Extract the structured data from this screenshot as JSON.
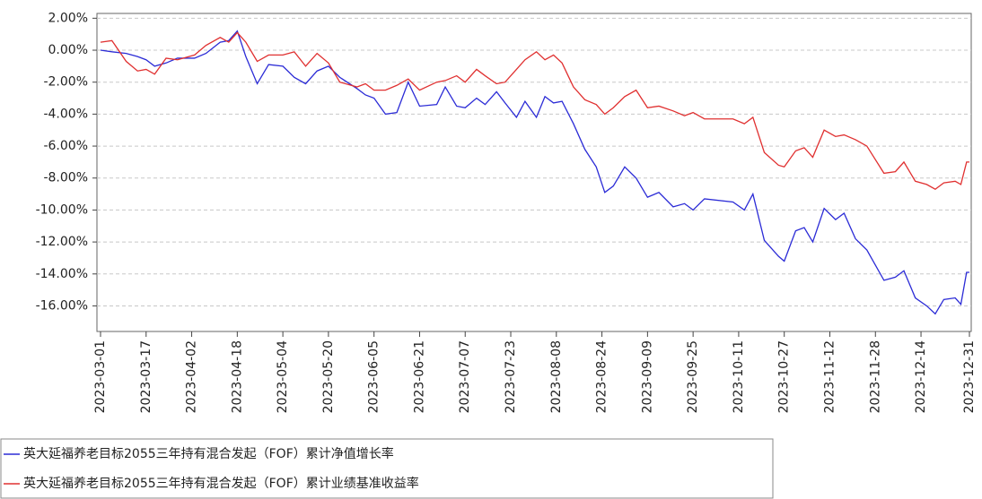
{
  "chart_data": {
    "type": "line",
    "x": [
      "2023-03-01",
      "2023-03-05",
      "2023-03-10",
      "2023-03-14",
      "2023-03-17",
      "2023-03-20",
      "2023-03-24",
      "2023-03-28",
      "2023-04-03",
      "2023-04-07",
      "2023-04-12",
      "2023-04-15",
      "2023-04-18",
      "2023-04-21",
      "2023-04-25",
      "2023-04-29",
      "2023-05-04",
      "2023-05-08",
      "2023-05-12",
      "2023-05-16",
      "2023-05-20",
      "2023-05-24",
      "2023-05-30",
      "2023-06-02",
      "2023-06-05",
      "2023-06-09",
      "2023-06-13",
      "2023-06-17",
      "2023-06-21",
      "2023-06-27",
      "2023-06-30",
      "2023-07-04",
      "2023-07-07",
      "2023-07-11",
      "2023-07-14",
      "2023-07-18",
      "2023-07-21",
      "2023-07-25",
      "2023-07-28",
      "2023-08-01",
      "2023-08-04",
      "2023-08-07",
      "2023-08-10",
      "2023-08-14",
      "2023-08-18",
      "2023-08-22",
      "2023-08-25",
      "2023-08-28",
      "2023-09-01",
      "2023-09-05",
      "2023-09-09",
      "2023-09-13",
      "2023-09-18",
      "2023-09-22",
      "2023-09-25",
      "2023-09-29",
      "2023-10-09",
      "2023-10-13",
      "2023-10-16",
      "2023-10-20",
      "2023-10-25",
      "2023-10-27",
      "2023-10-31",
      "2023-11-03",
      "2023-11-06",
      "2023-11-10",
      "2023-11-14",
      "2023-11-17",
      "2023-11-21",
      "2023-11-25",
      "2023-12-01",
      "2023-12-05",
      "2023-12-08",
      "2023-12-12",
      "2023-12-16",
      "2023-12-19",
      "2023-12-22",
      "2023-12-26",
      "2023-12-28",
      "2023-12-30",
      "2023-12-31"
    ],
    "series": [
      {
        "name": "英大延福养老目标2055三年持有混合发起（FOF）累计净值增长率",
        "color": "#2b2bd6",
        "values": [
          0,
          -0.1,
          -0.2,
          -0.4,
          -0.6,
          -1.0,
          -0.8,
          -0.5,
          -0.5,
          -0.2,
          0.5,
          0.6,
          1.2,
          -0.4,
          -2.1,
          -0.9,
          -1.0,
          -1.7,
          -2.1,
          -1.3,
          -1.0,
          -1.7,
          -2.4,
          -2.8,
          -3.0,
          -4.0,
          -3.9,
          -2.0,
          -3.5,
          -3.4,
          -2.3,
          -3.5,
          -3.6,
          -3.0,
          -3.4,
          -2.6,
          -3.3,
          -4.2,
          -3.2,
          -4.2,
          -2.9,
          -3.3,
          -3.2,
          -4.6,
          -6.2,
          -7.3,
          -8.9,
          -8.5,
          -7.3,
          -8.0,
          -9.2,
          -8.9,
          -9.8,
          -9.6,
          -10.0,
          -9.3,
          -9.5,
          -10.0,
          -9.0,
          -11.9,
          -12.9,
          -13.2,
          -11.3,
          -11.1,
          -12.0,
          -9.9,
          -10.6,
          -10.2,
          -11.8,
          -12.5,
          -14.4,
          -14.2,
          -13.8,
          -15.5,
          -16.0,
          -16.5,
          -15.6,
          -15.5,
          -15.9,
          -13.9,
          -13.9
        ]
      },
      {
        "name": "英大延福养老目标2055三年持有混合发起（FOF）累计业绩基准收益率",
        "color": "#e03030",
        "values": [
          0.5,
          0.6,
          -0.7,
          -1.3,
          -1.2,
          -1.5,
          -0.5,
          -0.6,
          -0.3,
          0.3,
          0.8,
          0.5,
          1.1,
          0.5,
          -0.7,
          -0.3,
          -0.3,
          -0.1,
          -1.0,
          -0.2,
          -0.8,
          -2.0,
          -2.3,
          -2.1,
          -2.5,
          -2.5,
          -2.2,
          -1.8,
          -2.5,
          -2.0,
          -1.9,
          -1.6,
          -2.0,
          -1.2,
          -1.6,
          -2.1,
          -2.0,
          -1.2,
          -0.6,
          -0.1,
          -0.6,
          -0.3,
          -0.8,
          -2.3,
          -3.1,
          -3.4,
          -4.0,
          -3.6,
          -2.9,
          -2.5,
          -3.6,
          -3.5,
          -3.8,
          -4.1,
          -3.9,
          -4.3,
          -4.3,
          -4.6,
          -4.2,
          -6.4,
          -7.2,
          -7.3,
          -6.3,
          -6.1,
          -6.7,
          -5.0,
          -5.4,
          -5.3,
          -5.6,
          -6.0,
          -7.7,
          -7.6,
          -7.0,
          -8.2,
          -8.4,
          -8.7,
          -8.3,
          -8.2,
          -8.4,
          -7.0,
          -7.0
        ]
      }
    ],
    "xlim": [
      "2023-03-01",
      "2023-12-31"
    ],
    "xticks": [
      "2023-03-01",
      "2023-03-17",
      "2023-04-02",
      "2023-04-18",
      "2023-05-04",
      "2023-05-20",
      "2023-06-05",
      "2023-06-21",
      "2023-07-07",
      "2023-07-23",
      "2023-08-08",
      "2023-08-24",
      "2023-09-09",
      "2023-09-25",
      "2023-10-11",
      "2023-10-27",
      "2023-11-12",
      "2023-11-28",
      "2023-12-14",
      "2023-12-31"
    ],
    "ylim": [
      -17.6,
      2.3
    ],
    "yticks": [
      {
        "value": 2,
        "label": "2.00%"
      },
      {
        "value": 0,
        "label": "0.00%"
      },
      {
        "value": -2,
        "label": "-2.00%"
      },
      {
        "value": -4,
        "label": "-4.00%"
      },
      {
        "value": -6,
        "label": "-6.00%"
      },
      {
        "value": -8,
        "label": "-8.00%"
      },
      {
        "value": -10,
        "label": "-10.00%"
      },
      {
        "value": -12,
        "label": "-12.00%"
      },
      {
        "value": -14,
        "label": "-14.00%"
      },
      {
        "value": -16,
        "label": "-16.00%"
      }
    ],
    "grid": true
  }
}
